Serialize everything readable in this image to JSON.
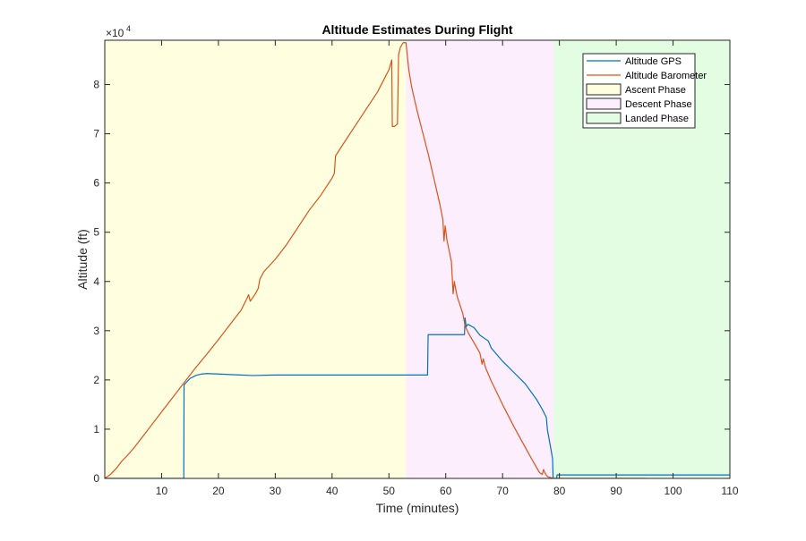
{
  "chart_data": {
    "type": "line",
    "title": "Altitude Estimates During Flight",
    "xlabel": "Time (minutes)",
    "ylabel": "Altitude (ft)",
    "y_exponent_label": "×10",
    "y_exponent_power": "4",
    "xlim": [
      0,
      110
    ],
    "ylim": [
      0,
      89000
    ],
    "x_ticks": [
      10,
      20,
      30,
      40,
      50,
      60,
      70,
      80,
      90,
      100,
      110
    ],
    "x_tick_labels": [
      "10",
      "20",
      "30",
      "40",
      "50",
      "60",
      "70",
      "80",
      "90",
      "100",
      "110"
    ],
    "y_ticks": [
      0,
      10000,
      20000,
      30000,
      40000,
      50000,
      60000,
      70000,
      80000
    ],
    "y_tick_labels": [
      "0",
      "1",
      "2",
      "3",
      "4",
      "5",
      "6",
      "7",
      "8"
    ],
    "grid": false,
    "legend_position": "top-right",
    "phases": [
      {
        "name": "Ascent Phase",
        "x_start": 0,
        "x_end": 53,
        "color": "#ffffe0"
      },
      {
        "name": "Descent Phase",
        "x_start": 53,
        "x_end": 79,
        "color": "#fdeefd"
      },
      {
        "name": "Landed Phase",
        "x_start": 79,
        "x_end": 110,
        "color": "#e2fde2"
      }
    ],
    "series": [
      {
        "name": "Altitude GPS",
        "color": "#0072bd",
        "points": [
          [
            0,
            0
          ],
          [
            13.9,
            0
          ],
          [
            13.95,
            19000
          ],
          [
            15,
            20300
          ],
          [
            16,
            20900
          ],
          [
            17,
            21200
          ],
          [
            18,
            21300
          ],
          [
            20,
            21200
          ],
          [
            24,
            21000
          ],
          [
            26,
            20900
          ],
          [
            30,
            21000
          ],
          [
            40,
            21000
          ],
          [
            50,
            21000
          ],
          [
            56.8,
            21000
          ],
          [
            56.9,
            29200
          ],
          [
            63.3,
            29200
          ],
          [
            63.4,
            32600
          ],
          [
            63.6,
            30800
          ],
          [
            63.9,
            31300
          ],
          [
            65,
            30600
          ],
          [
            66,
            29100
          ],
          [
            67,
            28300
          ],
          [
            67.5,
            27900
          ],
          [
            68,
            26500
          ],
          [
            70,
            23800
          ],
          [
            72,
            21500
          ],
          [
            74,
            19200
          ],
          [
            76,
            16000
          ],
          [
            77,
            14000
          ],
          [
            77.7,
            12400
          ],
          [
            77.9,
            9800
          ],
          [
            78.5,
            6000
          ],
          [
            78.8,
            4000
          ],
          [
            78.9,
            0
          ],
          [
            79.5,
            0
          ],
          [
            79.6,
            700
          ],
          [
            95,
            700
          ],
          [
            110,
            700
          ]
        ]
      },
      {
        "name": "Altitude Barometer",
        "color": "#d95319",
        "points": [
          [
            0,
            0
          ],
          [
            1,
            800
          ],
          [
            2,
            2000
          ],
          [
            3,
            3500
          ],
          [
            4,
            4700
          ],
          [
            5,
            6000
          ],
          [
            6,
            7500
          ],
          [
            7,
            9000
          ],
          [
            8,
            10500
          ],
          [
            10,
            13500
          ],
          [
            12,
            16500
          ],
          [
            14,
            19500
          ],
          [
            16,
            22500
          ],
          [
            18,
            25300
          ],
          [
            20,
            28200
          ],
          [
            22,
            31200
          ],
          [
            24,
            34200
          ],
          [
            25,
            36500
          ],
          [
            25.3,
            37300
          ],
          [
            25.6,
            36000
          ],
          [
            26.5,
            37500
          ],
          [
            27,
            38600
          ],
          [
            27.3,
            40500
          ],
          [
            28,
            42000
          ],
          [
            30,
            44500
          ],
          [
            32,
            47500
          ],
          [
            34,
            51000
          ],
          [
            36,
            54500
          ],
          [
            38,
            57500
          ],
          [
            40,
            61000
          ],
          [
            40.4,
            62000
          ],
          [
            40.6,
            65500
          ],
          [
            42,
            68000
          ],
          [
            44,
            71500
          ],
          [
            46,
            75000
          ],
          [
            48,
            78500
          ],
          [
            50,
            83000
          ],
          [
            50.5,
            85000
          ],
          [
            50.6,
            71500
          ],
          [
            51,
            71500
          ],
          [
            51.5,
            72000
          ],
          [
            51.7,
            86000
          ],
          [
            52,
            87500
          ],
          [
            52.5,
            88500
          ],
          [
            53,
            88500
          ],
          [
            53.5,
            83000
          ],
          [
            54,
            79500
          ],
          [
            55,
            74500
          ],
          [
            56,
            70000
          ],
          [
            57,
            65500
          ],
          [
            58,
            60500
          ],
          [
            59,
            55500
          ],
          [
            59.5,
            52500
          ],
          [
            59.7,
            48200
          ],
          [
            59.9,
            51300
          ],
          [
            60.2,
            48500
          ],
          [
            61,
            44000
          ],
          [
            61.3,
            37500
          ],
          [
            61.5,
            40000
          ],
          [
            62,
            37000
          ],
          [
            63,
            33500
          ],
          [
            63.4,
            31000
          ],
          [
            63.6,
            30500
          ],
          [
            64,
            29500
          ],
          [
            65,
            27500
          ],
          [
            66,
            25500
          ],
          [
            66.4,
            23200
          ],
          [
            66.6,
            24300
          ],
          [
            67,
            22500
          ],
          [
            68,
            19800
          ],
          [
            70,
            15000
          ],
          [
            72,
            10500
          ],
          [
            74,
            6300
          ],
          [
            75,
            4200
          ],
          [
            76,
            2200
          ],
          [
            76.5,
            1200
          ],
          [
            77,
            800
          ],
          [
            77.2,
            1800
          ],
          [
            77.6,
            800
          ],
          [
            78,
            300
          ],
          [
            79,
            0
          ],
          [
            95,
            0
          ],
          [
            98,
            -200
          ],
          [
            102,
            -300
          ],
          [
            105,
            -150
          ],
          [
            110,
            0
          ]
        ]
      }
    ]
  }
}
